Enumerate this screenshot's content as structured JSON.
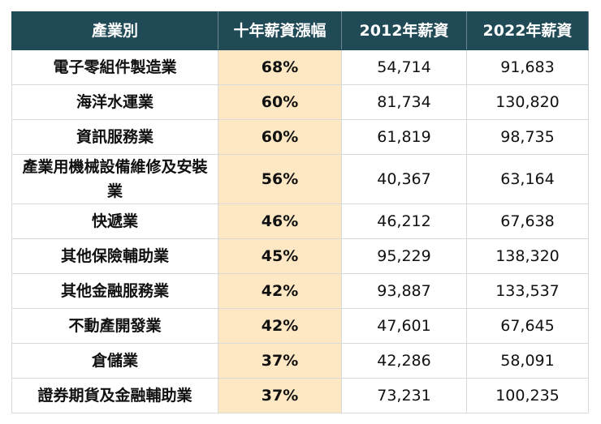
{
  "table": {
    "header": [
      "產業別",
      "十年薪資漲幅",
      "2012年薪資",
      "2022年薪資"
    ],
    "rows": [
      [
        "電子零組件製造業",
        "68%",
        "54,714",
        "91,683"
      ],
      [
        "海洋水運業",
        "60%",
        "81,734",
        "130,820"
      ],
      [
        "資訊服務業",
        "60%",
        "61,819",
        "98,735"
      ],
      [
        "產業用機械設備維修及安裝業",
        "56%",
        "40,367",
        "63,164"
      ],
      [
        "快遞業",
        "46%",
        "46,212",
        "67,638"
      ],
      [
        "其他保險輔助業",
        "45%",
        "95,229",
        "138,320"
      ],
      [
        "其他金融服務業",
        "42%",
        "93,887",
        "133,537"
      ],
      [
        "不動產開發業",
        "42%",
        "47,601",
        "67,645"
      ],
      [
        "倉儲業",
        "37%",
        "42,286",
        "58,091"
      ],
      [
        "證券期貨及金融輔助業",
        "37%",
        "73,231",
        "100,235"
      ]
    ]
  }
}
